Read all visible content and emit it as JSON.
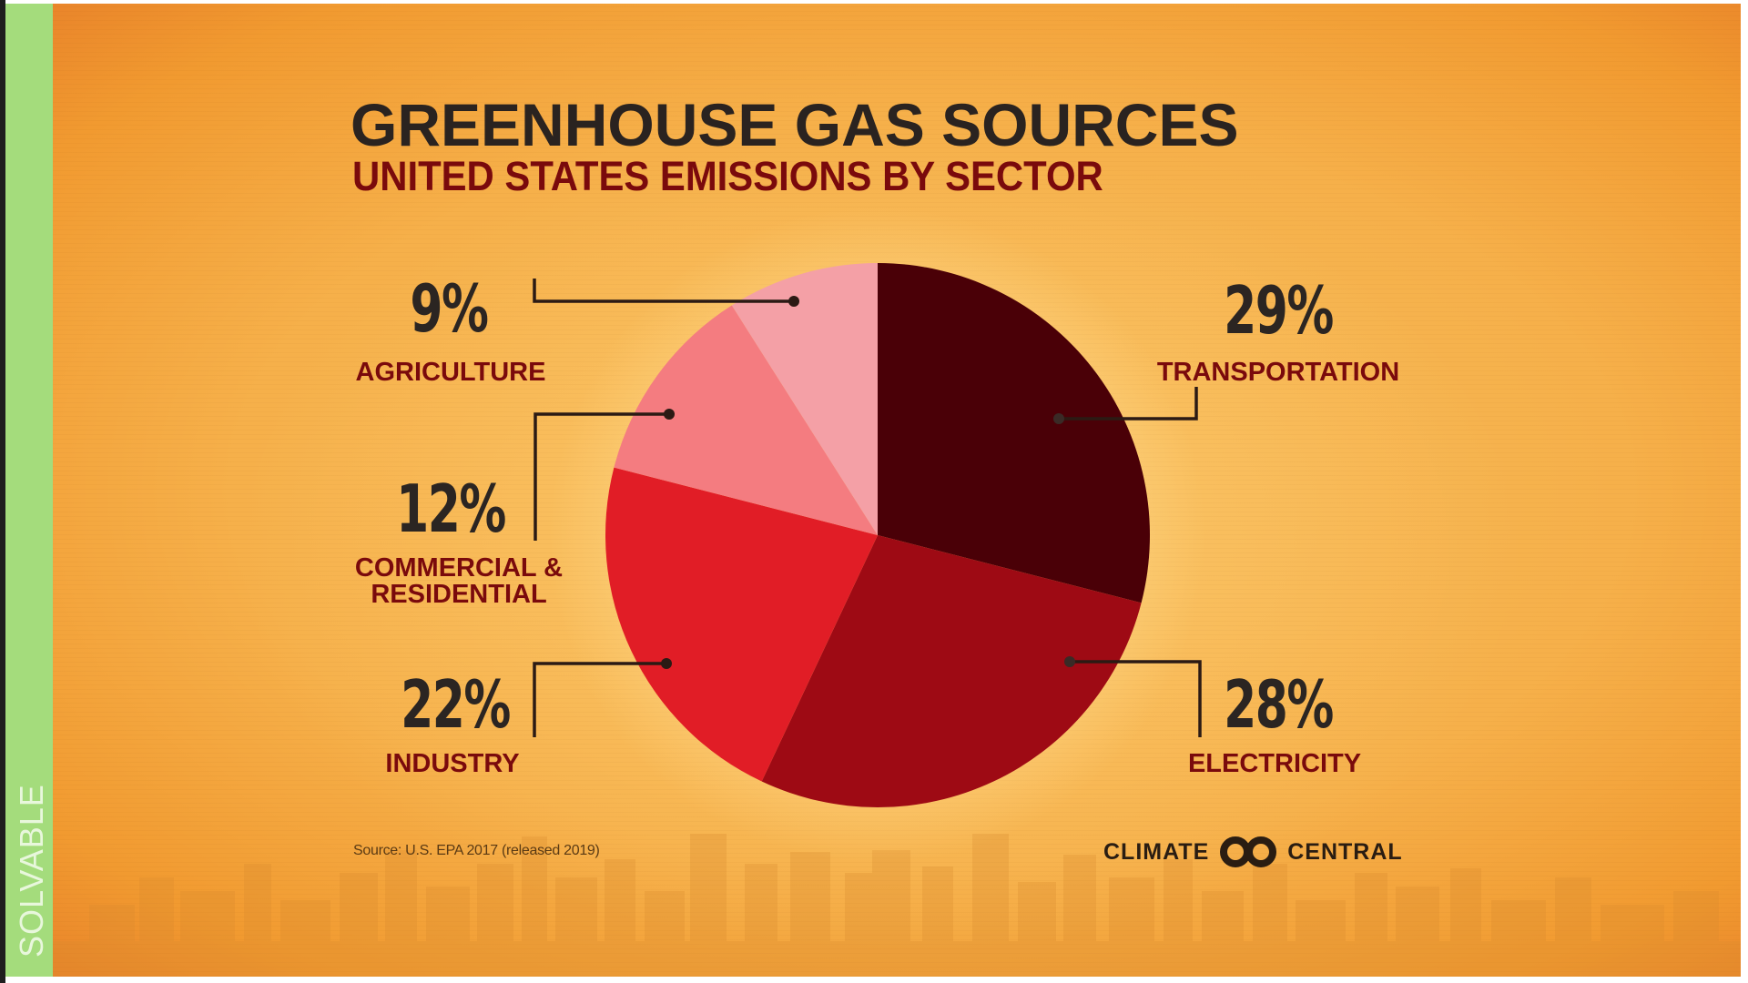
{
  "side_label": "SOLVABLE",
  "poster": {
    "title": "GREENHOUSE GAS SOURCES",
    "subtitle": "UNITED STATES EMISSIONS BY SECTOR",
    "source": "Source: U.S. EPA 2017 (released 2019)",
    "brand": {
      "left_word": "CLIMATE",
      "right_word": "CENTRAL",
      "logo_icon": "interlocking-rings-icon"
    }
  },
  "labels": {
    "agriculture": {
      "pct": "9%",
      "name": "AGRICULTURE"
    },
    "commercial": {
      "pct": "12%",
      "name_line1": "COMMERCIAL &",
      "name_line2": "RESIDENTIAL"
    },
    "industry": {
      "pct": "22%",
      "name": "INDUSTRY"
    },
    "transportation": {
      "pct": "29%",
      "name": "TRANSPORTATION"
    },
    "electricity": {
      "pct": "28%",
      "name": "ELECTRICITY"
    }
  },
  "colors": {
    "background": "#F7B956",
    "side_strip": "#A4DC7C",
    "title": "#2A2320",
    "subtitle": "#7A0A0C",
    "transportation": "#4A0007",
    "electricity": "#9E0A14",
    "industry": "#E11D26",
    "commercial": "#F47C80",
    "agriculture": "#F4A0A6"
  },
  "chart_data": {
    "type": "pie",
    "title": "GREENHOUSE GAS SOURCES",
    "subtitle": "UNITED STATES EMISSIONS BY SECTOR",
    "categories": [
      "Transportation",
      "Electricity",
      "Industry",
      "Commercial & Residential",
      "Agriculture"
    ],
    "values": [
      29,
      28,
      22,
      12,
      9
    ],
    "unit": "%",
    "start_angle": "12 o'clock, clockwise",
    "colors": [
      "#4A0007",
      "#9E0A14",
      "#E11D26",
      "#F47C80",
      "#F4A0A6"
    ],
    "legend": "none (callout labels with leader lines)",
    "source": "Source: U.S. EPA 2017 (released 2019)"
  }
}
